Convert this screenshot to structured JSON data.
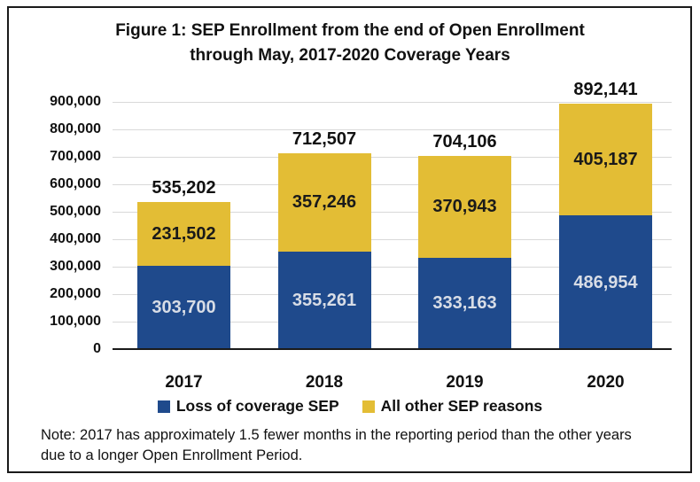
{
  "title": {
    "line1": "Figure 1: SEP Enrollment from the end of Open Enrollment",
    "line2": "through May, 2017-2020 Coverage Years"
  },
  "chart_data": {
    "type": "bar",
    "stacked": true,
    "title": "Figure 1: SEP Enrollment from the end of Open Enrollment through May, 2017-2020 Coverage Years",
    "categories": [
      "2017",
      "2018",
      "2019",
      "2020"
    ],
    "series": [
      {
        "name": "Loss of coverage SEP",
        "color": "#1F4A8C",
        "label_color": "#d8dde6",
        "values": [
          303700,
          355261,
          333163,
          486954
        ]
      },
      {
        "name": "All other SEP reasons",
        "color": "#E3BD35",
        "label_color": "#1a1a1a",
        "values": [
          231502,
          357246,
          370943,
          405187
        ]
      }
    ],
    "totals": [
      535202,
      712507,
      704106,
      892141
    ],
    "xlabel": "",
    "ylabel": "",
    "ylim": [
      0,
      900000
    ],
    "ytick_interval": 100000,
    "ytick_labels": [
      "0",
      "100,000",
      "200,000",
      "300,000",
      "400,000",
      "500,000",
      "600,000",
      "700,000",
      "800,000",
      "900,000"
    ],
    "grid": true,
    "legend_position": "bottom"
  },
  "note": {
    "text": "Note: 2017 has approximately 1.5 fewer months in the reporting period than the other years due to a longer Open Enrollment Period."
  },
  "colors": {
    "bar_blue": "#1F4A8C",
    "bar_yellow": "#E3BD35",
    "blue_segment_label": "#d8dde6",
    "grid": "#d9d9d9",
    "axis": "#1a1a1a",
    "border": "#1a1a1a",
    "background": "#ffffff"
  }
}
